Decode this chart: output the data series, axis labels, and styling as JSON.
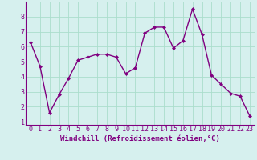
{
  "x": [
    0,
    1,
    2,
    3,
    4,
    5,
    6,
    7,
    8,
    9,
    10,
    11,
    12,
    13,
    14,
    15,
    16,
    17,
    18,
    19,
    20,
    21,
    22,
    23
  ],
  "y": [
    6.3,
    4.7,
    1.6,
    2.8,
    3.9,
    5.1,
    5.3,
    5.5,
    5.5,
    5.3,
    4.2,
    4.6,
    6.9,
    7.3,
    7.3,
    5.9,
    6.4,
    8.5,
    6.8,
    4.1,
    3.5,
    2.9,
    2.7,
    1.4
  ],
  "line_color": "#800080",
  "marker": "D",
  "marker_size": 2.0,
  "linewidth": 1.0,
  "xlabel": "Windchill (Refroidissement éolien,°C)",
  "xlabel_fontsize": 6.5,
  "xlim": [
    -0.5,
    23.5
  ],
  "ylim": [
    0.8,
    9.0
  ],
  "xticks": [
    0,
    1,
    2,
    3,
    4,
    5,
    6,
    7,
    8,
    9,
    10,
    11,
    12,
    13,
    14,
    15,
    16,
    17,
    18,
    19,
    20,
    21,
    22,
    23
  ],
  "yticks": [
    1,
    2,
    3,
    4,
    5,
    6,
    7,
    8
  ],
  "grid_color": "#aaddcc",
  "bg_color": "#d6f0ee",
  "tick_fontsize": 6.0,
  "xlabel_color": "#800080",
  "tick_color": "#800080",
  "spine_color": "#800080"
}
